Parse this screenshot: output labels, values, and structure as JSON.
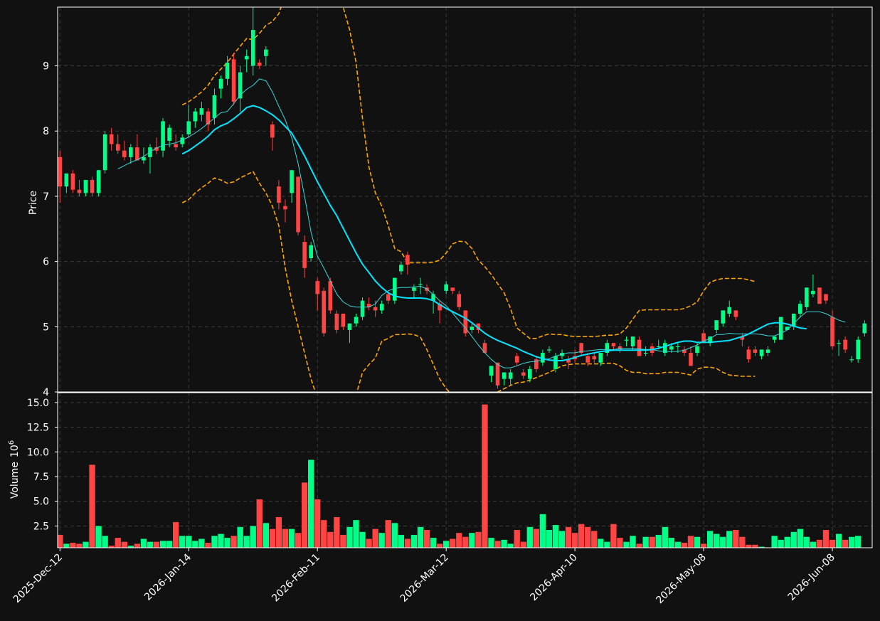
{
  "chart_data": {
    "type": "candlestick",
    "colors": {
      "up": "#00ff88",
      "down": "#ff4444",
      "ma_fast": "#3ad6d6",
      "ma_slow": "#00e5ff",
      "bands": "#ffa500",
      "background": "#111111",
      "grid": "#3a3a3a"
    },
    "price_axis": {
      "label": "Price",
      "ylim": [
        4.0,
        9.9
      ],
      "ticks": [
        "4",
        "5",
        "6",
        "7",
        "8",
        "9"
      ]
    },
    "volume_axis": {
      "label": "Volume",
      "multiplier": "10",
      "exponent": "6",
      "ylim": [
        0.3,
        16.0
      ],
      "ticks": [
        "2.5",
        "5.0",
        "7.5",
        "10.0",
        "12.5",
        "15.0"
      ]
    },
    "x_ticks": [
      "2025-Dec-12",
      "2026-Jan-14",
      "2026-Feb-11",
      "2026-Mar-12",
      "2026-Apr-10",
      "2026-May-08",
      "2026-Jun-08"
    ],
    "x_tick_index": [
      0,
      20,
      40,
      60,
      80,
      100,
      120
    ],
    "grid": true,
    "candles": [
      [
        7.6,
        7.7,
        6.9,
        7.15
      ],
      [
        7.15,
        7.35,
        7.05,
        7.35
      ],
      [
        7.35,
        7.4,
        7.05,
        7.1
      ],
      [
        7.1,
        7.25,
        7.0,
        7.05
      ],
      [
        7.05,
        7.25,
        7.0,
        7.25
      ],
      [
        7.25,
        7.3,
        7.0,
        7.05
      ],
      [
        7.05,
        7.4,
        7.0,
        7.4
      ],
      [
        7.4,
        8.0,
        7.35,
        7.95
      ],
      [
        7.95,
        8.05,
        7.7,
        7.8
      ],
      [
        7.8,
        7.95,
        7.65,
        7.7
      ],
      [
        7.7,
        7.85,
        7.55,
        7.6
      ],
      [
        7.6,
        7.8,
        7.5,
        7.75
      ],
      [
        7.75,
        7.95,
        7.55,
        7.55
      ],
      [
        7.55,
        7.75,
        7.5,
        7.6
      ],
      [
        7.6,
        7.8,
        7.35,
        7.75
      ],
      [
        7.75,
        7.9,
        7.65,
        7.7
      ],
      [
        7.7,
        8.2,
        7.6,
        8.15
      ],
      [
        7.85,
        8.1,
        7.75,
        8.05
      ],
      [
        7.8,
        7.95,
        7.7,
        7.75
      ],
      [
        7.8,
        7.95,
        7.75,
        7.9
      ],
      [
        7.95,
        8.4,
        7.9,
        8.15
      ],
      [
        8.15,
        8.35,
        8.05,
        8.3
      ],
      [
        8.25,
        8.45,
        8.15,
        8.35
      ],
      [
        8.3,
        8.35,
        8.0,
        8.1
      ],
      [
        8.2,
        8.65,
        8.1,
        8.55
      ],
      [
        8.65,
        8.85,
        8.5,
        8.8
      ],
      [
        8.8,
        9.15,
        8.7,
        9.05
      ],
      [
        9.1,
        9.2,
        8.4,
        8.45
      ],
      [
        8.5,
        9.0,
        8.3,
        8.9
      ],
      [
        9.1,
        9.25,
        8.9,
        9.15
      ],
      [
        9.0,
        9.95,
        8.85,
        9.55
      ],
      [
        9.05,
        9.1,
        8.95,
        9.0
      ],
      [
        9.15,
        9.3,
        9.0,
        9.25
      ],
      [
        8.1,
        8.15,
        7.7,
        7.9
      ],
      [
        7.15,
        7.25,
        6.8,
        6.9
      ],
      [
        6.85,
        6.95,
        6.6,
        6.8
      ],
      [
        7.05,
        7.4,
        6.9,
        7.4
      ],
      [
        7.3,
        7.3,
        6.4,
        6.45
      ],
      [
        6.3,
        6.4,
        5.75,
        5.9
      ],
      [
        6.05,
        6.3,
        6.0,
        6.25
      ],
      [
        5.7,
        5.75,
        5.25,
        5.5
      ],
      [
        5.55,
        5.6,
        4.85,
        4.9
      ],
      [
        5.7,
        5.75,
        5.2,
        5.25
      ],
      [
        5.2,
        5.25,
        4.9,
        4.95
      ],
      [
        5.2,
        5.2,
        4.95,
        5.0
      ],
      [
        4.95,
        5.05,
        4.75,
        5.05
      ],
      [
        5.05,
        5.2,
        5.0,
        5.15
      ],
      [
        5.15,
        5.45,
        5.1,
        5.4
      ],
      [
        5.35,
        5.45,
        5.25,
        5.3
      ],
      [
        5.3,
        5.4,
        5.15,
        5.25
      ],
      [
        5.25,
        5.4,
        5.2,
        5.35
      ],
      [
        5.5,
        5.55,
        5.35,
        5.4
      ],
      [
        5.4,
        5.75,
        5.35,
        5.75
      ],
      [
        5.85,
        6.0,
        5.8,
        5.95
      ],
      [
        6.1,
        6.15,
        5.8,
        5.95
      ],
      [
        5.55,
        5.65,
        5.45,
        5.6
      ],
      [
        5.65,
        5.75,
        5.5,
        5.65
      ],
      [
        5.6,
        5.65,
        5.5,
        5.55
      ],
      [
        5.4,
        5.55,
        5.2,
        5.5
      ],
      [
        5.35,
        5.4,
        5.05,
        5.25
      ],
      [
        5.55,
        5.7,
        5.5,
        5.65
      ],
      [
        5.6,
        5.6,
        5.5,
        5.55
      ],
      [
        5.5,
        5.55,
        5.25,
        5.3
      ],
      [
        5.25,
        5.25,
        4.85,
        4.9
      ],
      [
        4.95,
        5.05,
        4.9,
        5.0
      ],
      [
        5.05,
        5.05,
        4.9,
        4.95
      ],
      [
        4.75,
        4.8,
        4.6,
        4.6
      ],
      [
        4.25,
        4.35,
        4.15,
        4.4
      ],
      [
        4.45,
        4.45,
        4.05,
        4.1
      ],
      [
        4.2,
        4.3,
        4.1,
        4.3
      ],
      [
        4.2,
        4.35,
        4.1,
        4.3
      ],
      [
        4.55,
        4.6,
        4.4,
        4.45
      ],
      [
        4.3,
        4.35,
        4.2,
        4.25
      ],
      [
        4.2,
        4.4,
        4.15,
        4.35
      ],
      [
        4.5,
        4.55,
        4.3,
        4.35
      ],
      [
        4.45,
        4.65,
        4.4,
        4.6
      ],
      [
        4.65,
        4.7,
        4.6,
        4.65
      ],
      [
        4.35,
        4.6,
        4.3,
        4.55
      ],
      [
        4.55,
        4.65,
        4.5,
        4.6
      ],
      [
        4.5,
        4.55,
        4.35,
        4.45
      ],
      [
        4.55,
        4.65,
        4.45,
        4.5
      ],
      [
        4.75,
        4.75,
        4.55,
        4.6
      ],
      [
        4.55,
        4.6,
        4.4,
        4.45
      ],
      [
        4.55,
        4.6,
        4.45,
        4.5
      ],
      [
        4.45,
        4.6,
        4.4,
        4.6
      ],
      [
        4.6,
        4.8,
        4.55,
        4.75
      ],
      [
        4.75,
        4.75,
        4.65,
        4.7
      ],
      [
        4.7,
        4.75,
        4.6,
        4.65
      ],
      [
        4.8,
        4.85,
        4.7,
        4.8
      ],
      [
        4.7,
        4.85,
        4.65,
        4.85
      ],
      [
        4.8,
        4.85,
        4.55,
        4.55
      ],
      [
        4.6,
        4.7,
        4.55,
        4.6
      ],
      [
        4.7,
        4.75,
        4.55,
        4.6
      ],
      [
        4.7,
        4.8,
        4.65,
        4.7
      ],
      [
        4.6,
        4.8,
        4.55,
        4.75
      ],
      [
        4.65,
        4.75,
        4.6,
        4.7
      ],
      [
        4.7,
        4.75,
        4.6,
        4.7
      ],
      [
        4.65,
        4.7,
        4.55,
        4.6
      ],
      [
        4.6,
        4.7,
        4.4,
        4.4
      ],
      [
        4.6,
        4.75,
        4.55,
        4.7
      ],
      [
        4.9,
        4.95,
        4.75,
        4.75
      ],
      [
        4.75,
        4.85,
        4.7,
        4.85
      ],
      [
        4.95,
        5.1,
        4.9,
        5.1
      ],
      [
        5.05,
        5.25,
        5.0,
        5.25
      ],
      [
        5.2,
        5.4,
        5.15,
        5.3
      ],
      [
        5.25,
        5.25,
        5.1,
        5.15
      ],
      [
        4.85,
        4.9,
        4.7,
        4.8
      ],
      [
        4.65,
        4.7,
        4.45,
        4.5
      ],
      [
        4.65,
        4.7,
        4.55,
        4.6
      ],
      [
        4.55,
        4.65,
        4.5,
        4.65
      ],
      [
        4.6,
        4.7,
        4.55,
        4.65
      ],
      [
        4.8,
        4.85,
        4.75,
        4.85
      ],
      [
        4.8,
        5.15,
        4.8,
        5.15
      ],
      [
        4.95,
        5.0,
        4.95,
        5.0
      ],
      [
        5.0,
        5.2,
        4.95,
        5.2
      ],
      [
        5.2,
        5.4,
        5.15,
        5.35
      ],
      [
        5.3,
        5.6,
        5.25,
        5.6
      ],
      [
        5.5,
        5.8,
        5.45,
        5.55
      ],
      [
        5.6,
        5.6,
        5.35,
        5.35
      ],
      [
        5.5,
        5.5,
        5.35,
        5.4
      ],
      [
        5.15,
        5.25,
        4.65,
        4.7
      ],
      [
        4.75,
        4.8,
        4.55,
        4.75
      ],
      [
        4.8,
        4.85,
        4.6,
        4.65
      ],
      [
        4.5,
        4.55,
        4.45,
        4.5
      ],
      [
        4.5,
        4.85,
        4.45,
        4.8
      ],
      [
        4.9,
        5.1,
        4.85,
        5.05
      ]
    ],
    "volumes": [
      1.6,
      0.7,
      0.8,
      0.7,
      0.9,
      8.7,
      2.5,
      1.5,
      0.5,
      1.3,
      0.9,
      0.5,
      0.7,
      1.2,
      0.9,
      0.9,
      1.0,
      1.0,
      2.9,
      1.5,
      1.5,
      1.0,
      1.2,
      0.8,
      1.5,
      1.7,
      1.3,
      1.5,
      2.4,
      1.5,
      2.5,
      5.2,
      2.8,
      2.2,
      3.4,
      2.2,
      2.2,
      1.8,
      6.9,
      9.2,
      5.2,
      3.1,
      1.9,
      3.4,
      1.6,
      2.4,
      3.1,
      1.9,
      1.2,
      2.2,
      1.8,
      3.1,
      2.8,
      1.6,
      1.2,
      1.6,
      2.4,
      2.1,
      1.3,
      0.7,
      1.0,
      1.2,
      1.8,
      1.4,
      1.8,
      1.9,
      14.8,
      1.3,
      1.0,
      1.1,
      0.7,
      2.1,
      0.9,
      2.4,
      2.2,
      3.7,
      2.1,
      2.6,
      2.0,
      2.4,
      1.8,
      2.7,
      2.4,
      2.0,
      1.2,
      0.9,
      2.7,
      1.3,
      0.9,
      1.5,
      0.7,
      1.4,
      1.4,
      1.6,
      2.4,
      1.3,
      0.9,
      0.8,
      1.5,
      1.4,
      0.7,
      2.0,
      1.7,
      1.4,
      2.0,
      2.1,
      1.4,
      0.6,
      0.6,
      0.4,
      0.3,
      1.5,
      1.1,
      1.4,
      1.9,
      2.2,
      1.4,
      0.9,
      1.1,
      2.1,
      1.1,
      1.7,
      1.1,
      1.4,
      1.5
    ],
    "ma_fast_start": 9,
    "ma_fast": [
      7.42,
      7.47,
      7.52,
      7.56,
      7.61,
      7.68,
      7.74,
      7.78,
      7.8,
      7.82,
      7.86,
      7.91,
      7.97,
      8.04,
      8.12,
      8.2,
      8.28,
      8.3,
      8.42,
      8.55,
      8.64,
      8.7,
      8.8,
      8.77,
      8.6,
      8.38,
      8.17,
      7.9,
      7.5,
      7.0,
      6.45,
      6.08,
      5.9,
      5.7,
      5.5,
      5.38,
      5.32,
      5.3,
      5.3,
      5.3,
      5.35,
      5.48,
      5.55,
      5.59,
      5.6,
      5.6,
      5.61,
      5.62,
      5.58,
      5.49,
      5.4,
      5.32,
      5.21,
      5.09,
      4.98,
      4.85,
      4.72,
      4.6,
      4.5,
      4.42,
      4.37,
      4.37,
      4.4,
      4.44,
      4.46,
      4.47,
      4.49,
      4.51,
      4.55,
      4.58,
      4.6,
      4.6,
      4.62,
      4.63,
      4.64,
      4.65,
      4.65,
      4.65,
      4.67,
      4.67,
      4.67,
      4.66,
      4.65,
      4.65,
      4.63,
      4.62,
      4.62,
      4.62,
      4.64,
      4.68,
      4.72,
      4.78,
      4.82,
      4.88,
      4.88,
      4.9,
      4.89,
      4.89,
      4.89,
      4.89,
      4.88,
      4.86,
      4.86,
      4.9,
      4.95,
      5.05,
      5.15,
      5.23,
      5.23,
      5.23,
      5.2,
      5.15,
      5.1,
      5.07
    ],
    "ma_slow_start": 19,
    "ma_slow": [
      7.65,
      7.7,
      7.77,
      7.84,
      7.92,
      8.02,
      8.08,
      8.12,
      8.19,
      8.27,
      8.36,
      8.39,
      8.36,
      8.31,
      8.25,
      8.17,
      8.07,
      7.97,
      7.8,
      7.62,
      7.42,
      7.22,
      7.04,
      6.86,
      6.7,
      6.51,
      6.32,
      6.13,
      5.96,
      5.83,
      5.7,
      5.6,
      5.52,
      5.47,
      5.45,
      5.44,
      5.44,
      5.44,
      5.43,
      5.4,
      5.34,
      5.28,
      5.23,
      5.18,
      5.13,
      5.06,
      4.98,
      4.9,
      4.84,
      4.79,
      4.75,
      4.71,
      4.67,
      4.62,
      4.58,
      4.54,
      4.51,
      4.49,
      4.48,
      4.48,
      4.5,
      4.53,
      4.56,
      4.58,
      4.6,
      4.62,
      4.63,
      4.64,
      4.64,
      4.64,
      4.64,
      4.64,
      4.64,
      4.65,
      4.67,
      4.7,
      4.73,
      4.76,
      4.78,
      4.78,
      4.76,
      4.76,
      4.76,
      4.77,
      4.78,
      4.79,
      4.82,
      4.85,
      4.89,
      4.94,
      4.99,
      5.04,
      5.06,
      5.06,
      5.04,
      5.01,
      4.98,
      4.97
    ],
    "bands_start": 19,
    "band_upper": [
      8.4,
      8.45,
      8.52,
      8.6,
      8.7,
      8.85,
      8.95,
      9.05,
      9.18,
      9.3,
      9.42,
      9.4,
      9.5,
      9.62,
      9.68,
      9.8,
      10.1,
      10.5,
      10.9,
      11.1,
      11.3,
      11.2,
      10.95,
      10.6,
      10.2,
      9.9,
      9.55,
      9.05,
      8.2,
      7.45,
      7.05,
      6.85,
      6.55,
      6.2,
      6.15,
      5.98,
      5.98,
      5.98,
      5.98,
      5.99,
      6.02,
      6.13,
      6.27,
      6.31,
      6.3,
      6.2,
      6.02,
      5.92,
      5.8,
      5.66,
      5.52,
      5.28,
      4.98,
      4.9,
      4.82,
      4.82,
      4.86,
      4.89,
      4.88,
      4.88,
      4.86,
      4.85,
      4.85,
      4.85,
      4.85,
      4.86,
      4.87,
      4.87,
      4.89,
      4.98,
      5.12,
      5.25,
      5.26,
      5.26,
      5.26,
      5.26,
      5.26,
      5.26,
      5.28,
      5.32,
      5.38,
      5.55,
      5.68,
      5.72,
      5.74,
      5.74,
      5.74,
      5.74,
      5.72,
      5.69
    ],
    "band_lower": [
      6.9,
      6.95,
      7.05,
      7.13,
      7.2,
      7.28,
      7.25,
      7.2,
      7.22,
      7.28,
      7.33,
      7.38,
      7.2,
      7.05,
      6.85,
      6.55,
      5.9,
      5.4,
      5.0,
      4.6,
      4.2,
      3.9,
      3.65,
      3.4,
      3.2,
      3.4,
      3.65,
      3.95,
      4.3,
      4.42,
      4.52,
      4.78,
      4.82,
      4.88,
      4.88,
      4.89,
      4.88,
      4.84,
      4.65,
      4.42,
      4.2,
      4.05,
      3.95,
      3.88,
      3.85,
      3.85,
      3.88,
      3.92,
      3.96,
      4.0,
      4.05,
      4.1,
      4.14,
      4.15,
      4.18,
      4.22,
      4.26,
      4.3,
      4.35,
      4.4,
      4.42,
      4.43,
      4.43,
      4.43,
      4.43,
      4.43,
      4.44,
      4.44,
      4.4,
      4.33,
      4.3,
      4.3,
      4.28,
      4.28,
      4.28,
      4.3,
      4.3,
      4.3,
      4.28,
      4.26,
      4.35,
      4.38,
      4.38,
      4.36,
      4.3,
      4.26,
      4.25,
      4.24,
      4.24,
      4.24
    ]
  }
}
